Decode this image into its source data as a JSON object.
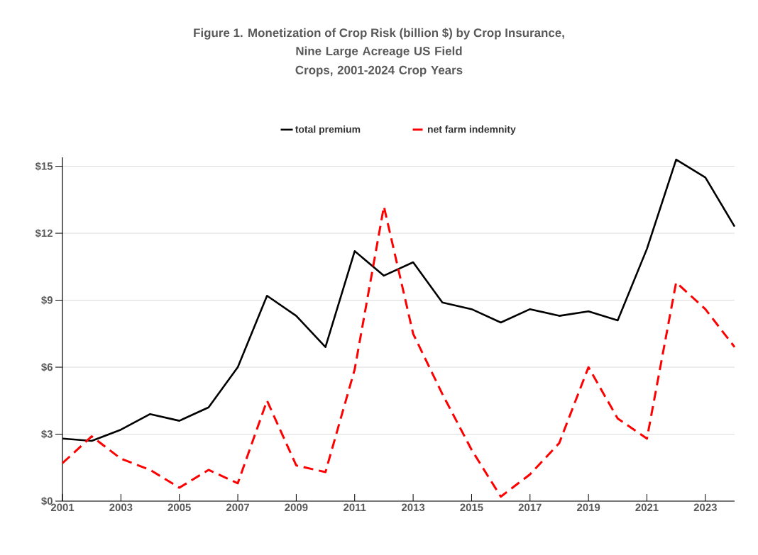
{
  "chart_data": {
    "type": "line",
    "title": "Figure 1.  Monetization of Crop Risk (billion $) by Crop Insurance,",
    "subtitle": "Nine Large Acreage US Field Crops, 2001-2024 Crop Years",
    "x": [
      2001,
      2002,
      2003,
      2004,
      2005,
      2006,
      2007,
      2008,
      2009,
      2010,
      2011,
      2012,
      2013,
      2014,
      2015,
      2016,
      2017,
      2018,
      2019,
      2020,
      2021,
      2022,
      2023,
      2024
    ],
    "series": [
      {
        "name": "total premium",
        "color": "#000000",
        "line_style": "solid",
        "values": [
          2.8,
          2.7,
          3.2,
          3.9,
          3.6,
          4.2,
          6.0,
          9.2,
          8.3,
          6.9,
          11.2,
          10.1,
          10.7,
          8.9,
          8.6,
          8.0,
          8.6,
          8.3,
          8.5,
          8.1,
          11.3,
          15.3,
          14.5,
          12.3
        ]
      },
      {
        "name": "net farm indemnity",
        "color": "#ff0000",
        "line_style": "dashed",
        "values": [
          1.7,
          2.9,
          1.9,
          1.4,
          0.6,
          1.4,
          0.8,
          4.5,
          1.6,
          1.3,
          5.9,
          13.2,
          7.5,
          4.8,
          2.3,
          0.2,
          1.2,
          2.6,
          6.0,
          3.7,
          2.8,
          9.8,
          8.6,
          6.9
        ]
      }
    ],
    "xlim": [
      2001,
      2024
    ],
    "xticks": [
      2001,
      2003,
      2005,
      2007,
      2009,
      2011,
      2013,
      2015,
      2017,
      2019,
      2021,
      2023
    ],
    "ylim": [
      0,
      15.4
    ],
    "yticks": [
      {
        "value": 0,
        "label": "$0"
      },
      {
        "value": 3,
        "label": "$3"
      },
      {
        "value": 6,
        "label": "$6"
      },
      {
        "value": 9,
        "label": "$9"
      },
      {
        "value": 12,
        "label": "$12"
      },
      {
        "value": 15,
        "label": "$15"
      }
    ],
    "grid": "y",
    "legend": "top"
  }
}
